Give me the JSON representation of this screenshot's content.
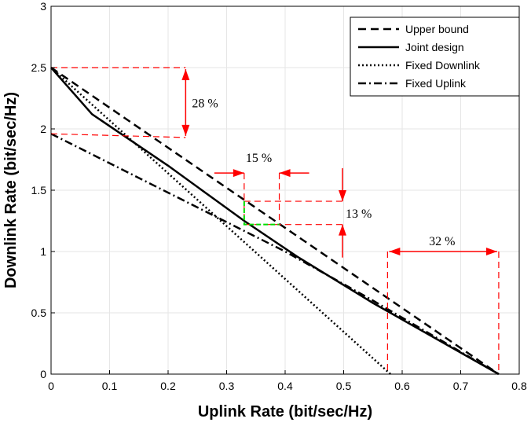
{
  "chart_data": {
    "type": "line",
    "xlabel": "Uplink Rate (bit/sec/Hz)",
    "ylabel": "Downlink Rate (bit/sec/Hz)",
    "xlim": [
      0,
      0.8
    ],
    "ylim": [
      0,
      3
    ],
    "xticks": [
      "0",
      "0.1",
      "0.2",
      "0.3",
      "0.4",
      "0.5",
      "0.6",
      "0.7",
      "0.8"
    ],
    "yticks": [
      "0",
      "0.5",
      "1",
      "1.5",
      "2",
      "2.5",
      "3"
    ],
    "grid": true,
    "legend_position": "top-right",
    "series": [
      {
        "name": "Upper bound",
        "style": "dashed",
        "color": "#000000",
        "points": [
          [
            0,
            2.5
          ],
          [
            0.765,
            0
          ]
        ]
      },
      {
        "name": "Joint design",
        "style": "solid",
        "color": "#000000",
        "points": [
          [
            0,
            2.5
          ],
          [
            0.07,
            2.12
          ],
          [
            0.2,
            1.7
          ],
          [
            0.33,
            1.25
          ],
          [
            0.42,
            0.96
          ],
          [
            0.55,
            0.58
          ],
          [
            0.765,
            0
          ]
        ]
      },
      {
        "name": "Fixed Downlink",
        "style": "dotted",
        "color": "#000000",
        "points": [
          [
            0,
            2.5
          ],
          [
            0.58,
            0
          ]
        ]
      },
      {
        "name": "Fixed Uplink",
        "style": "dashdot",
        "color": "#000000",
        "points": [
          [
            0,
            1.96
          ],
          [
            0.2,
            1.48
          ],
          [
            0.4,
            1.0
          ],
          [
            0.55,
            0.6
          ],
          [
            0.765,
            0
          ]
        ]
      }
    ],
    "annotations": [
      {
        "label": "28 %",
        "value": 28
      },
      {
        "label": "15 %",
        "value": 15
      },
      {
        "label": "13 %",
        "value": 13
      },
      {
        "label": "32 %",
        "value": 32
      }
    ],
    "annotation_color": "#ff0000",
    "highlight_color": "#00dd00"
  }
}
